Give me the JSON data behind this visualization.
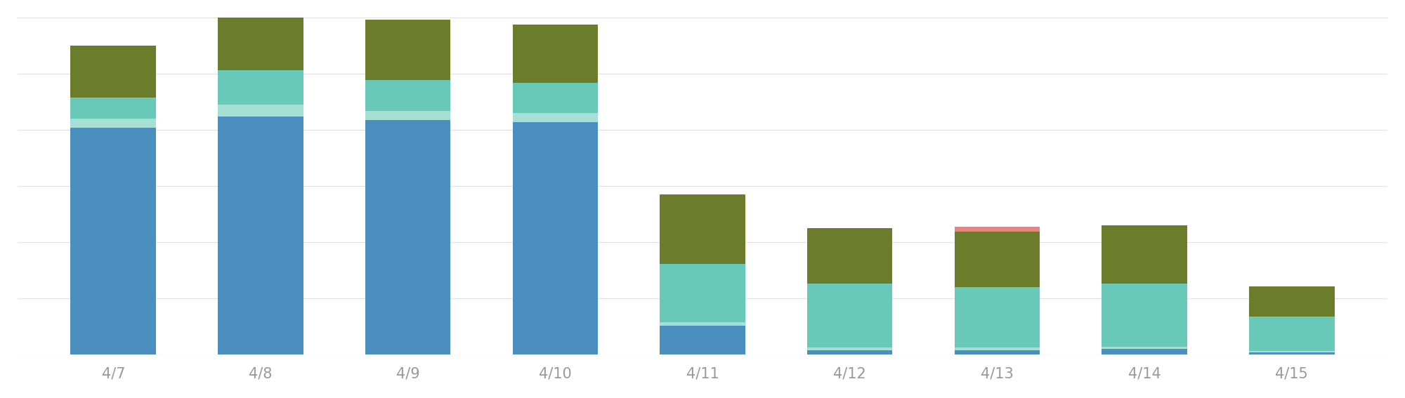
{
  "categories": [
    "4/7",
    "4/8",
    "4/9",
    "4/10",
    "4/11",
    "4/12",
    "4/13",
    "4/14",
    "4/15"
  ],
  "segments": {
    "blue": [
      195,
      205,
      202,
      200,
      25,
      4,
      4,
      5,
      2
    ],
    "mint": [
      8,
      10,
      8,
      8,
      3,
      2,
      2,
      2,
      1
    ],
    "teal": [
      18,
      30,
      26,
      26,
      50,
      55,
      52,
      54,
      30
    ],
    "olive": [
      45,
      58,
      52,
      50,
      60,
      48,
      48,
      50,
      26
    ],
    "salmon": [
      0,
      0,
      0,
      0,
      0,
      0,
      4,
      0,
      0
    ]
  },
  "colors": {
    "blue": "#4b8fbe",
    "mint": "#a8dfd5",
    "teal": "#68c9b8",
    "olive": "#6b7c2b",
    "salmon": "#f08080"
  },
  "background_color": "#ffffff",
  "gridline_color": "#e2e2e2",
  "tick_label_color": "#999999",
  "bar_width": 0.58,
  "ylim": [
    0,
    290
  ],
  "figsize": [
    20.0,
    5.67
  ],
  "dpi": 100,
  "n_gridlines": 7
}
